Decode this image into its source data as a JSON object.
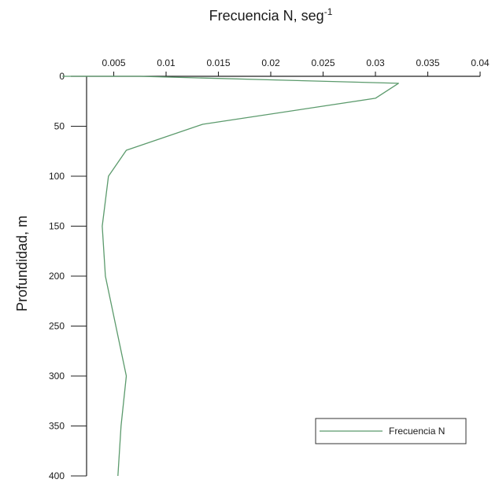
{
  "chart_data": {
    "type": "line",
    "title": "",
    "xlabel": "Frecuencia N, seg",
    "xlabel_superscript": "-1",
    "ylabel": "Profundidad, m",
    "xlim": [
      0,
      0.04
    ],
    "ylim": [
      0,
      400
    ],
    "y_inverted": true,
    "x_axis_position": "top",
    "x_ticks": [
      0.005,
      0.01,
      0.015,
      0.02,
      0.025,
      0.03,
      0.035,
      0.04
    ],
    "x_tick_labels": [
      "0.005",
      "0.01",
      "0.015",
      "0.02",
      "0.025",
      "0.03",
      "0.035",
      "0.04"
    ],
    "y_ticks": [
      0,
      50,
      100,
      150,
      200,
      250,
      300,
      350,
      400
    ],
    "y_tick_labels": [
      "0",
      "50",
      "100",
      "150",
      "200",
      "250",
      "300",
      "350",
      "400"
    ],
    "grid": false,
    "legend_position": "bottom-right",
    "series": [
      {
        "name": "Frecuencia N",
        "color": "#5b9a6c",
        "x": [
          0.0001,
          0.0075,
          0.0322,
          0.03,
          0.0135,
          0.0062,
          0.0045,
          0.0039,
          0.0042,
          0.0062,
          0.0057,
          0.0054
        ],
        "y": [
          0,
          0,
          7,
          22,
          48,
          74,
          100,
          150,
          200,
          300,
          350,
          400
        ]
      }
    ]
  }
}
